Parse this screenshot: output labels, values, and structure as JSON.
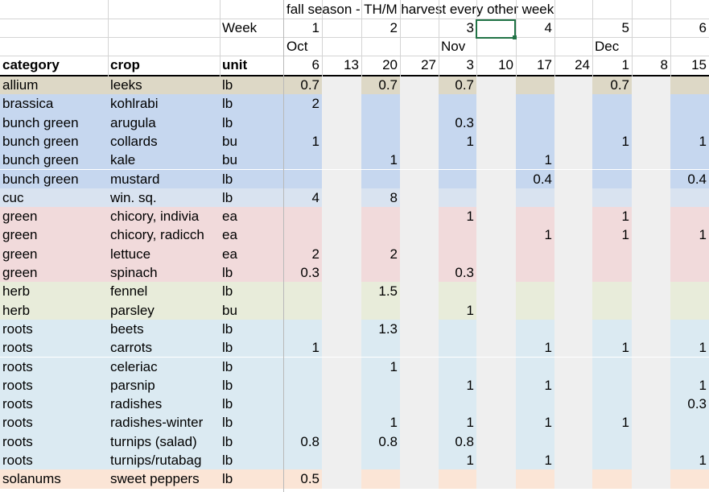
{
  "colors": {
    "allium": "#ddd8c6",
    "brassica": "#c6d7ef",
    "bunch green": "#c6d7ef",
    "cuc": "#d9e3f0",
    "green": "#f1dadb",
    "herb": "#e8ecda",
    "roots": "#dbeaf2",
    "solanums": "#fbe5d6",
    "gray_col": "#efefef",
    "selection": "#217346"
  },
  "sheet": {
    "title": "fall season - TH/M harvest every other week",
    "week_label": "Week",
    "week_numbers": [
      "1",
      "",
      "2",
      "",
      "3",
      "",
      "4",
      "",
      "5",
      "",
      "6"
    ],
    "months": [
      "Oct",
      "",
      "",
      "",
      "Nov",
      "",
      "",
      "",
      "Dec",
      "",
      ""
    ],
    "headers": {
      "category": "category",
      "crop": "crop",
      "unit": "unit"
    },
    "days": [
      "6",
      "13",
      "20",
      "27",
      "3",
      "10",
      "17",
      "24",
      "1",
      "8",
      "15"
    ],
    "rows": [
      {
        "category": "allium",
        "crop": "leeks",
        "unit": "lb",
        "values": [
          "0.7",
          "",
          "0.7",
          "",
          "0.7",
          "",
          "",
          "",
          "0.7",
          "",
          ""
        ]
      },
      {
        "category": "brassica",
        "crop": "kohlrabi",
        "unit": "lb",
        "values": [
          "2",
          "",
          "",
          "",
          "",
          "",
          "",
          "",
          "",
          "",
          ""
        ]
      },
      {
        "category": "bunch green",
        "crop": "arugula",
        "unit": "lb",
        "values": [
          "",
          "",
          "",
          "",
          "0.3",
          "",
          "",
          "",
          "",
          "",
          ""
        ]
      },
      {
        "category": "bunch green",
        "crop": "collards",
        "unit": "bu",
        "values": [
          "1",
          "",
          "",
          "",
          "1",
          "",
          "",
          "",
          "1",
          "",
          "1"
        ]
      },
      {
        "category": "bunch green",
        "crop": "kale",
        "unit": "bu",
        "values": [
          "",
          "",
          "1",
          "",
          "",
          "",
          "1",
          "",
          "",
          "",
          ""
        ]
      },
      {
        "category": "bunch green",
        "crop": "mustard",
        "unit": "lb",
        "values": [
          "",
          "",
          "",
          "",
          "",
          "",
          "0.4",
          "",
          "",
          "",
          "0.4"
        ]
      },
      {
        "category": "cuc",
        "crop": "win. sq.",
        "unit": "lb",
        "values": [
          "4",
          "",
          "8",
          "",
          "",
          "",
          "",
          "",
          "",
          "",
          ""
        ]
      },
      {
        "category": "green",
        "crop": "chicory, indivia",
        "unit": "ea",
        "values": [
          "",
          "",
          "",
          "",
          "1",
          "",
          "",
          "",
          "1",
          "",
          ""
        ]
      },
      {
        "category": "green",
        "crop": "chicory, radicch",
        "unit": "ea",
        "values": [
          "",
          "",
          "",
          "",
          "",
          "",
          "1",
          "",
          "1",
          "",
          "1"
        ]
      },
      {
        "category": "green",
        "crop": "lettuce",
        "unit": "ea",
        "values": [
          "2",
          "",
          "2",
          "",
          "",
          "",
          "",
          "",
          "",
          "",
          ""
        ]
      },
      {
        "category": "green",
        "crop": "spinach",
        "unit": "lb",
        "values": [
          "0.3",
          "",
          "",
          "",
          "0.3",
          "",
          "",
          "",
          "",
          "",
          ""
        ]
      },
      {
        "category": "herb",
        "crop": "fennel",
        "unit": "lb",
        "values": [
          "",
          "",
          "1.5",
          "",
          "",
          "",
          "",
          "",
          "",
          "",
          ""
        ]
      },
      {
        "category": "herb",
        "crop": "parsley",
        "unit": "bu",
        "values": [
          "",
          "",
          "",
          "",
          "1",
          "",
          "",
          "",
          "",
          "",
          ""
        ]
      },
      {
        "category": "roots",
        "crop": "beets",
        "unit": "lb",
        "values": [
          "",
          "",
          "1.3",
          "",
          "",
          "",
          "",
          "",
          "",
          "",
          ""
        ]
      },
      {
        "category": "roots",
        "crop": "carrots",
        "unit": "lb",
        "values": [
          "1",
          "",
          "",
          "",
          "",
          "",
          "1",
          "",
          "1",
          "",
          "1"
        ]
      },
      {
        "category": "roots",
        "crop": "celeriac",
        "unit": "lb",
        "values": [
          "",
          "",
          "1",
          "",
          "",
          "",
          "",
          "",
          "",
          "",
          ""
        ]
      },
      {
        "category": "roots",
        "crop": "parsnip",
        "unit": "lb",
        "values": [
          "",
          "",
          "",
          "",
          "1",
          "",
          "1",
          "",
          "",
          "",
          "1"
        ]
      },
      {
        "category": "roots",
        "crop": "radishes",
        "unit": "lb",
        "values": [
          "",
          "",
          "",
          "",
          "",
          "",
          "",
          "",
          "",
          "",
          "0.3"
        ]
      },
      {
        "category": "roots",
        "crop": "radishes-winter",
        "unit": "lb",
        "values": [
          "",
          "",
          "1",
          "",
          "1",
          "",
          "1",
          "",
          "1",
          "",
          ""
        ]
      },
      {
        "category": "roots",
        "crop": "turnips (salad)",
        "unit": "lb",
        "values": [
          "0.8",
          "",
          "0.8",
          "",
          "0.8",
          "",
          "",
          "",
          "",
          "",
          ""
        ]
      },
      {
        "category": "roots",
        "crop": "turnips/rutabag",
        "unit": "lb",
        "values": [
          "",
          "",
          "",
          "",
          "1",
          "",
          "1",
          "",
          "",
          "",
          "1"
        ]
      },
      {
        "category": "solanums",
        "crop": "sweet peppers",
        "unit": "lb",
        "values": [
          "0.5",
          "",
          "",
          "",
          "",
          "",
          "",
          "",
          "",
          "",
          ""
        ]
      }
    ]
  }
}
